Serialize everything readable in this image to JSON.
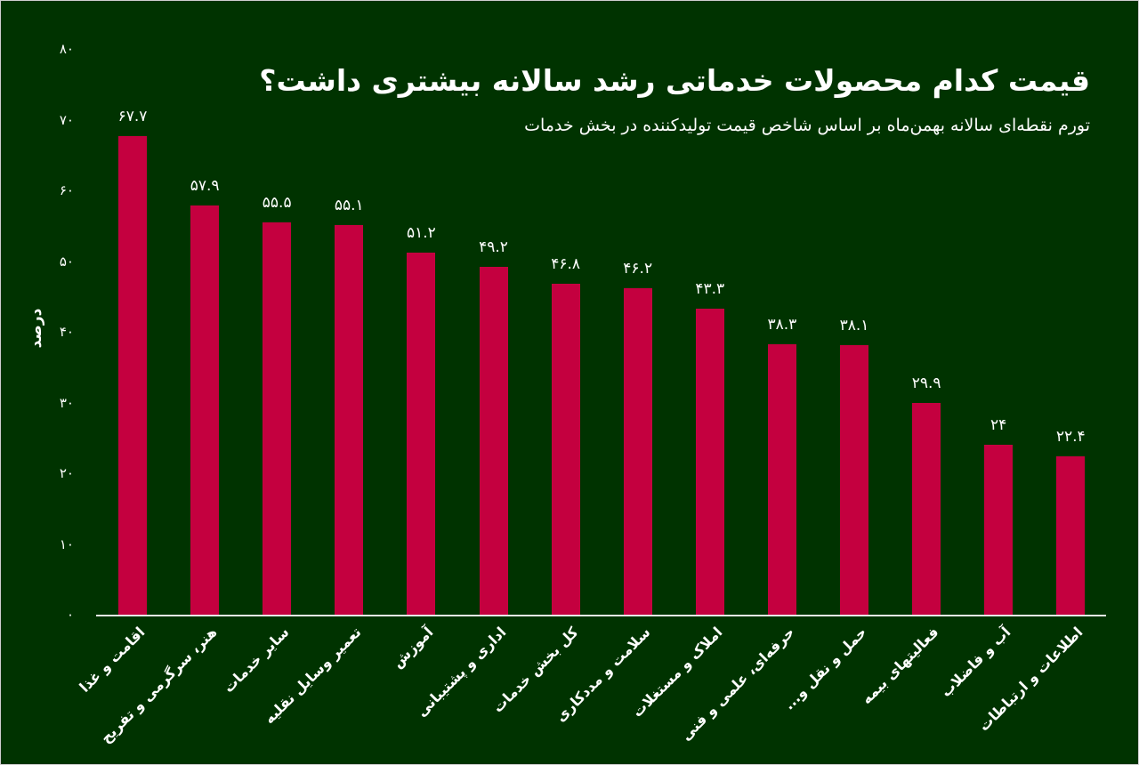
{
  "title": "قیمت کدام محصولات خدماتی رشد سالانه بیشتری داشت؟",
  "subtitle": "تورم نقطه‌ای سالانه بهمن‌ماه بر اساس شاخص قیمت تولیدکننده در بخش خدمات",
  "colors": {
    "background": "#003300",
    "bar": "#c4003f",
    "text": "#ffffff",
    "axis": "#e8e8e8"
  },
  "y_axis": {
    "label": "درصد",
    "ticks": [
      "۰",
      "۱۰",
      "۲۰",
      "۳۰",
      "۴۰",
      "۵۰",
      "۶۰",
      "۷۰",
      "۸۰"
    ]
  },
  "bars": [
    {
      "category": "اقامت و غذا",
      "value": 67.7,
      "label": "۶۷.۷"
    },
    {
      "category": "هنر، سرگرمی و تفریح",
      "value": 57.9,
      "label": "۵۷.۹"
    },
    {
      "category": "سایر خدمات",
      "value": 55.5,
      "label": "۵۵.۵"
    },
    {
      "category": "تعمیر وسایل نقلیه",
      "value": 55.1,
      "label": "۵۵.۱"
    },
    {
      "category": "آموزش",
      "value": 51.2,
      "label": "۵۱.۲"
    },
    {
      "category": "اداری و پشتیبانی",
      "value": 49.2,
      "label": "۴۹.۲"
    },
    {
      "category": "کل بخش خدمات",
      "value": 46.8,
      "label": "۴۶.۸"
    },
    {
      "category": "سلامت و مددکاری",
      "value": 46.2,
      "label": "۴۶.۲"
    },
    {
      "category": "املاک و مستغلات",
      "value": 43.3,
      "label": "۴۳.۳"
    },
    {
      "category": "حرفه‌ای، علمی و فنی",
      "value": 38.3,
      "label": "۳۸.۳"
    },
    {
      "category": "حمل و نقل و...",
      "value": 38.1,
      "label": "۳۸.۱"
    },
    {
      "category": "فعالیتهای بیمه",
      "value": 29.9,
      "label": "۲۹.۹"
    },
    {
      "category": "آب و فاضلاب",
      "value": 24,
      "label": "۲۴"
    },
    {
      "category": "اطلاعات و ارتباطات",
      "value": 22.4,
      "label": "۲۲.۴"
    }
  ],
  "chart_data": {
    "type": "bar",
    "title": "قیمت کدام محصولات خدماتی رشد سالانه بیشتری داشت؟",
    "subtitle": "تورم نقطه‌ای سالانه بهمن‌ماه بر اساس شاخص قیمت تولیدکننده در بخش خدمات",
    "xlabel": "",
    "ylabel": "درصد",
    "ylim": [
      0,
      80
    ],
    "yticks": [
      0,
      10,
      20,
      30,
      40,
      50,
      60,
      70,
      80
    ],
    "grid": false,
    "legend": null,
    "categories": [
      "اقامت و غذا",
      "هنر، سرگرمی و تفریح",
      "سایر خدمات",
      "تعمیر وسایل نقلیه",
      "آموزش",
      "اداری و پشتیبانی",
      "کل بخش خدمات",
      "سلامت و مددکاری",
      "املاک و مستغلات",
      "حرفه‌ای، علمی و فنی",
      "حمل و نقل و...",
      "فعالیتهای بیمه",
      "آب و فاضلاب",
      "اطلاعات و ارتباطات"
    ],
    "values": [
      67.7,
      57.9,
      55.5,
      55.1,
      51.2,
      49.2,
      46.8,
      46.2,
      43.3,
      38.3,
      38.1,
      29.9,
      24,
      22.4
    ]
  }
}
